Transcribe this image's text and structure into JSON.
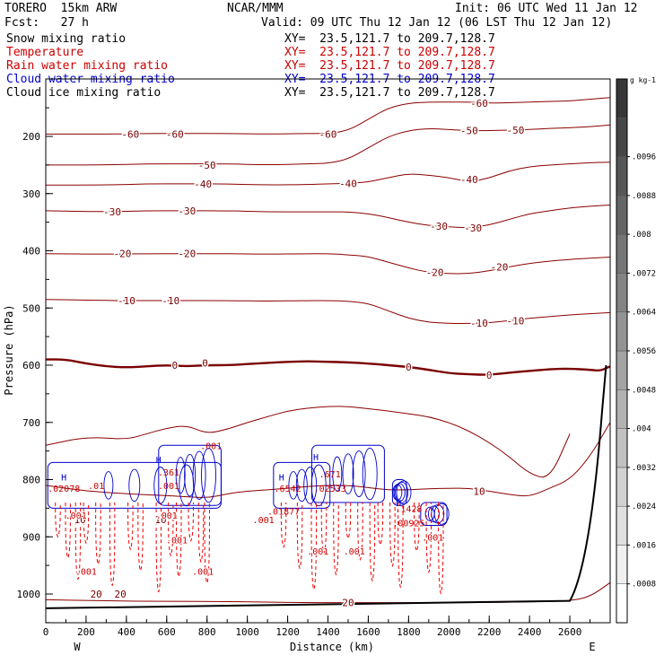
{
  "header": {
    "model": "TORERO  15km ARW",
    "center": "NCAR/MMM",
    "init": "Init: 06 UTC Wed 11 Jan 12",
    "fcst": "Fcst:   27 h",
    "valid": "Valid: 09 UTC Thu 12 Jan 12 (06 LST Thu 12 Jan 12)"
  },
  "fields": [
    {
      "name": "Snow mixing ratio",
      "xy": "XY=  23.5,121.7 to 209.7,128.7",
      "color": "#000000"
    },
    {
      "name": "Temperature",
      "xy": "XY=  23.5,121.7 to 209.7,128.7",
      "color": "#cc0000"
    },
    {
      "name": "Rain water mixing ratio",
      "xy": "XY=  23.5,121.7 to 209.7,128.7",
      "color": "#cc0000"
    },
    {
      "name": "Cloud water mixing ratio",
      "xy": "XY=  23.5,121.7 to 209.7,128.7",
      "color": "#0000cc"
    },
    {
      "name": "Cloud ice mixing ratio",
      "xy": "XY=  23.5,121.7 to 209.7,128.7",
      "color": "#000000"
    }
  ],
  "chart_data": {
    "type": "cross-section contour",
    "xlabel": "Distance (km)",
    "ylabel": "Pressure (hPa)",
    "xlim": [
      0,
      2800
    ],
    "ylim": [
      1050,
      100
    ],
    "x_ticks": [
      0,
      200,
      400,
      600,
      800,
      1000,
      1200,
      1400,
      1600,
      1800,
      2000,
      2200,
      2400,
      2600
    ],
    "y_ticks": [
      200,
      300,
      400,
      500,
      600,
      700,
      800,
      900,
      1000
    ],
    "x_end_labels": [
      "W",
      "E"
    ],
    "colorbar": {
      "unit": "g kg-1",
      "ticks": [
        ".0008",
        ".0016",
        ".0024",
        ".0032",
        ".004",
        ".0048",
        ".0056",
        ".0064",
        ".0072",
        ".008",
        ".0088",
        ".0096"
      ]
    },
    "temperature_isotherms": [
      {
        "label": "-60",
        "x": [
          0,
          300,
          500,
          700,
          900,
          1100,
          1300,
          1400,
          1500,
          1600,
          1700,
          1800,
          1900,
          2000,
          2100,
          2200,
          2300,
          2400,
          2500,
          2600,
          2700,
          2800
        ],
        "p": [
          196,
          196,
          195,
          195,
          195,
          196,
          195,
          195,
          190,
          170,
          150,
          142,
          140,
          140,
          140,
          142,
          141,
          140,
          139,
          138,
          135,
          132
        ]
      },
      {
        "label": "-50",
        "x": [
          0,
          300,
          500,
          700,
          900,
          1100,
          1300,
          1400,
          1500,
          1600,
          1700,
          1800,
          1900,
          2000,
          2100,
          2200,
          2300,
          2400,
          2500,
          2600,
          2700,
          2800
        ],
        "p": [
          250,
          250,
          248,
          248,
          248,
          250,
          248,
          247,
          240,
          220,
          200,
          190,
          186,
          188,
          190,
          190,
          189,
          188,
          186,
          185,
          183,
          180
        ]
      },
      {
        "label": "-40",
        "x": [
          0,
          300,
          500,
          700,
          900,
          1100,
          1300,
          1400,
          1500,
          1600,
          1700,
          1800,
          1900,
          2000,
          2100,
          2200,
          2300,
          2400,
          2500,
          2600,
          2700,
          2800
        ],
        "p": [
          285,
          285,
          283,
          283,
          283,
          285,
          284,
          283,
          282,
          280,
          272,
          265,
          268,
          272,
          280,
          273,
          260,
          253,
          250,
          248,
          246,
          245
        ]
      },
      {
        "label": "-30",
        "x": [
          0,
          300,
          500,
          700,
          900,
          1100,
          1300,
          1400,
          1500,
          1600,
          1700,
          1800,
          1900,
          2000,
          2100,
          2200,
          2300,
          2400,
          2500,
          2600,
          2700,
          2800
        ],
        "p": [
          330,
          332,
          330,
          330,
          330,
          332,
          332,
          332,
          332,
          335,
          342,
          350,
          356,
          358,
          360,
          355,
          345,
          335,
          330,
          325,
          322,
          320
        ]
      },
      {
        "label": "-20",
        "x": [
          0,
          300,
          500,
          700,
          900,
          1100,
          1300,
          1400,
          1500,
          1600,
          1700,
          1800,
          1900,
          2000,
          2100,
          2200,
          2300,
          2400,
          2500,
          2600,
          2700,
          2800
        ],
        "p": [
          405,
          406,
          405,
          405,
          405,
          406,
          405,
          405,
          407,
          410,
          420,
          430,
          438,
          440,
          440,
          435,
          428,
          422,
          418,
          415,
          413,
          411
        ]
      },
      {
        "label": "-10",
        "x": [
          0,
          300,
          500,
          700,
          900,
          1100,
          1300,
          1400,
          1500,
          1600,
          1700,
          1800,
          1900,
          2000,
          2100,
          2200,
          2300,
          2400,
          2500,
          2600,
          2700,
          2800
        ],
        "p": [
          485,
          487,
          487,
          487,
          487,
          488,
          487,
          487,
          488,
          492,
          505,
          518,
          525,
          527,
          527,
          526,
          522,
          518,
          515,
          512,
          510,
          508
        ]
      },
      {
        "label": "0",
        "x": [
          0,
          100,
          200,
          300,
          400,
          500,
          600,
          700,
          800,
          900,
          1000,
          1100,
          1200,
          1300,
          1400,
          1500,
          1600,
          1700,
          1800,
          1900,
          2000,
          2100,
          2200,
          2300,
          2400,
          2500,
          2600,
          2700,
          2750,
          2800
        ],
        "p": [
          590,
          590,
          597,
          602,
          604,
          602,
          600,
          602,
          600,
          600,
          598,
          596,
          594,
          593,
          594,
          595,
          597,
          600,
          603,
          608,
          614,
          616,
          617,
          613,
          610,
          607,
          606,
          608,
          610,
          602
        ]
      },
      {
        "label": "10",
        "x": [
          0,
          200,
          400,
          600,
          700,
          800,
          900,
          1000,
          1100,
          1200,
          1300,
          1400,
          1500,
          1600,
          1700,
          1800,
          1900,
          2000,
          2100,
          2200,
          2300,
          2400,
          2500,
          2600,
          2700,
          2800
        ],
        "p": [
          810,
          820,
          825,
          828,
          830,
          832,
          825,
          820,
          818,
          815,
          812,
          810,
          810,
          814,
          818,
          818,
          816,
          815,
          815,
          820,
          826,
          830,
          815,
          800,
          760,
          700
        ]
      },
      {
        "label": "20",
        "x": [
          0,
          300,
          600,
          900,
          1200,
          1500,
          1800,
          2100,
          2400,
          2600,
          2700,
          2800
        ],
        "p": [
          1010,
          1012,
          1013,
          1013,
          1015,
          1015,
          1015,
          1015,
          1014,
          1012,
          1005,
          980
        ]
      }
    ],
    "isotherm_labels": [
      {
        "text": "-60",
        "x": 420,
        "p": 196
      },
      {
        "text": "-60",
        "x": 640,
        "p": 196
      },
      {
        "text": "-60",
        "x": 1400,
        "p": 196
      },
      {
        "text": "-60",
        "x": 2150,
        "p": 142
      },
      {
        "text": "-50",
        "x": 800,
        "p": 250
      },
      {
        "text": "-50",
        "x": 2100,
        "p": 190
      },
      {
        "text": "-50",
        "x": 2330,
        "p": 189
      },
      {
        "text": "-40",
        "x": 780,
        "p": 283
      },
      {
        "text": "-40",
        "x": 1500,
        "p": 282
      },
      {
        "text": "-40",
        "x": 2100,
        "p": 275
      },
      {
        "text": "-30",
        "x": 330,
        "p": 332
      },
      {
        "text": "-30",
        "x": 700,
        "p": 330
      },
      {
        "text": "-30",
        "x": 1950,
        "p": 357
      },
      {
        "text": "-30",
        "x": 2120,
        "p": 360
      },
      {
        "text": "-20",
        "x": 380,
        "p": 405
      },
      {
        "text": "-20",
        "x": 700,
        "p": 405
      },
      {
        "text": "-20",
        "x": 1930,
        "p": 438
      },
      {
        "text": "-20",
        "x": 2250,
        "p": 428
      },
      {
        "text": "-10",
        "x": 400,
        "p": 487
      },
      {
        "text": "-10",
        "x": 620,
        "p": 487
      },
      {
        "text": "-10",
        "x": 2150,
        "p": 526
      },
      {
        "text": "-10",
        "x": 2330,
        "p": 522
      },
      {
        "text": "0",
        "x": 640,
        "p": 600
      },
      {
        "text": "0",
        "x": 790,
        "p": 596
      },
      {
        "text": "0",
        "x": 1800,
        "p": 603
      },
      {
        "text": "0",
        "x": 2200,
        "p": 617
      },
      {
        "text": "10",
        "x": 170,
        "p": 870
      },
      {
        "text": "10",
        "x": 570,
        "p": 870
      },
      {
        "text": "10",
        "x": 2150,
        "p": 820
      },
      {
        "text": "20",
        "x": 250,
        "p": 1000
      },
      {
        "text": "20",
        "x": 370,
        "p": 1000
      },
      {
        "text": "20",
        "x": 1500,
        "p": 1015
      }
    ],
    "outer_isotherm": {
      "x": [
        0,
        200,
        400,
        500,
        600,
        700,
        800,
        900,
        1000,
        1100,
        1200,
        1300,
        1400,
        1500,
        1600,
        1700,
        1800,
        1900,
        2000,
        2100,
        2200,
        2300,
        2400,
        2500,
        2600
      ],
      "p": [
        740,
        725,
        730,
        720,
        710,
        705,
        720,
        712,
        700,
        690,
        680,
        675,
        672,
        672,
        676,
        680,
        685,
        690,
        700,
        715,
        735,
        760,
        790,
        800,
        720
      ]
    },
    "ground_p_west": 1025,
    "ground_p_east": 1012,
    "cloud_water_labels": [
      {
        "text": "H",
        "x": 90,
        "p": 795
      },
      {
        "text": ".02078",
        "x": 90,
        "p": 815
      },
      {
        "text": ".01",
        "x": 250,
        "p": 810
      },
      {
        "text": "H",
        "x": 560,
        "p": 765
      },
      {
        "text": ".361",
        "x": 610,
        "p": 787
      },
      {
        "text": ".001",
        "x": 610,
        "p": 810
      },
      {
        "text": ".001",
        "x": 820,
        "p": 740
      },
      {
        "text": "H",
        "x": 1170,
        "p": 795
      },
      {
        "text": ".6542",
        "x": 1200,
        "p": 815
      },
      {
        "text": "H",
        "x": 1340,
        "p": 760
      },
      {
        "text": ".671",
        "x": 1410,
        "p": 790
      },
      {
        "text": ".02533",
        "x": 1410,
        "p": 815
      },
      {
        "text": ".01877",
        "x": 1180,
        "p": 855
      },
      {
        "text": "H",
        "x": 1750,
        "p": 840
      },
      {
        "text": ".1428",
        "x": 1800,
        "p": 850
      },
      {
        "text": ".00925",
        "x": 1800,
        "p": 875
      }
    ],
    "rain_labels": [
      {
        "text": ".001",
        "x": 150,
        "p": 862
      },
      {
        "text": ".001",
        "x": 600,
        "p": 862
      },
      {
        "text": ".001",
        "x": 650,
        "p": 905
      },
      {
        "text": ".001",
        "x": 200,
        "p": 960
      },
      {
        "text": ".001",
        "x": 780,
        "p": 960
      },
      {
        "text": ".001",
        "x": 1350,
        "p": 925
      },
      {
        "text": ".001",
        "x": 1530,
        "p": 925
      },
      {
        "text": ".001",
        "x": 1920,
        "p": 900
      },
      {
        "text": ".001",
        "x": 1080,
        "p": 870
      }
    ]
  }
}
